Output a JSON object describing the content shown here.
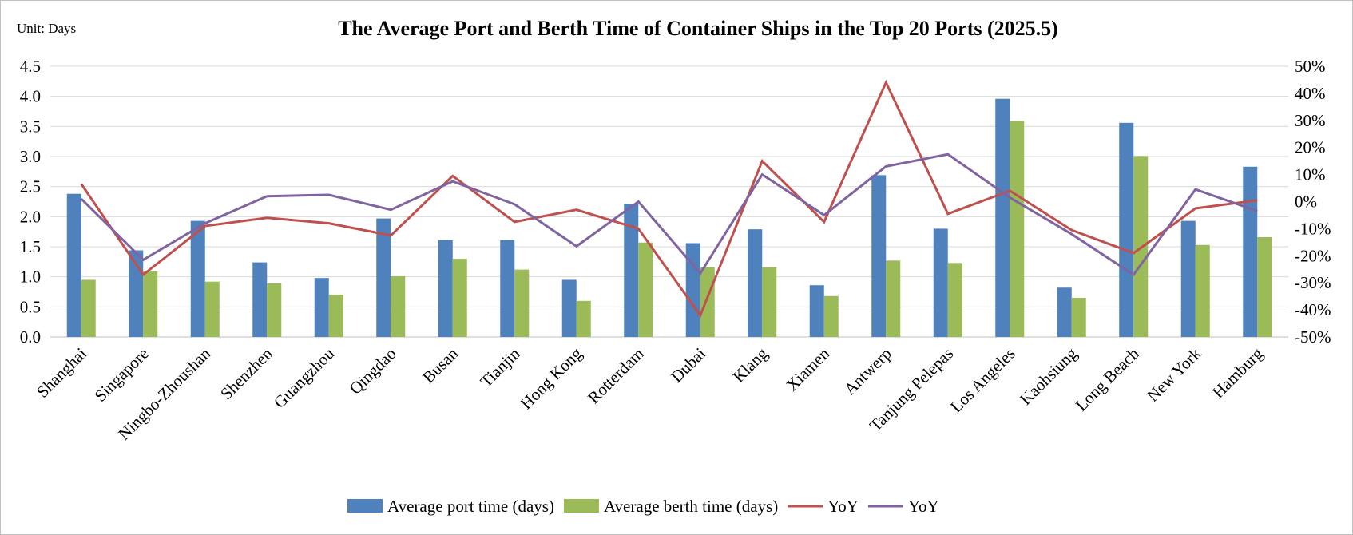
{
  "chart_data": {
    "type": "bar",
    "title": "The Average Port and Berth Time of Container Ships in the Top 20 Ports (2025.5)",
    "unit_label": "Unit: Days",
    "categories": [
      "Shanghai",
      "Singapore",
      "Ningbo-Zhoushan",
      "Shenzhen",
      "Guangzhou",
      "Qingdao",
      "Busan",
      "Tianjin",
      "Hong Kong",
      "Rotterdam",
      "Dubai",
      "Klang",
      "Xiamen",
      "Antwerp",
      "Tanjung Pelepas",
      "Los Angeles",
      "Kaohsiung",
      "Long Beach",
      "New York",
      "Hamburg"
    ],
    "series": [
      {
        "name": "Average port time (days)",
        "type": "bar",
        "axis": "left",
        "color": "#4f81bd",
        "values": [
          2.38,
          1.44,
          1.93,
          1.24,
          0.98,
          1.97,
          1.61,
          1.61,
          0.95,
          2.21,
          1.56,
          1.79,
          0.86,
          2.69,
          1.8,
          3.96,
          0.82,
          3.56,
          1.93,
          2.83
        ]
      },
      {
        "name": "Average berth time (days)",
        "type": "bar",
        "axis": "left",
        "color": "#9bbb59",
        "values": [
          0.95,
          1.09,
          0.92,
          0.89,
          0.7,
          1.01,
          1.3,
          1.12,
          0.6,
          1.57,
          1.16,
          1.16,
          0.68,
          1.27,
          1.23,
          3.59,
          0.65,
          3.01,
          1.53,
          1.66
        ]
      },
      {
        "name": "YoY",
        "type": "line",
        "axis": "right",
        "color": "#c0504d",
        "values": [
          6.5,
          -27,
          -9,
          -6,
          -8,
          -12.5,
          9.5,
          -7.5,
          -3,
          -10,
          -42,
          15,
          -7.5,
          44,
          -4.5,
          4,
          -10.5,
          -19,
          -2.5,
          0.5
        ]
      },
      {
        "name": "YoY",
        "type": "line",
        "axis": "right",
        "color": "#8064a2",
        "values": [
          1,
          -21.5,
          -8,
          2,
          2.5,
          -3,
          7.5,
          -1,
          -16.5,
          0,
          -26.5,
          10,
          -5,
          13,
          17.5,
          1.5,
          -12,
          -27,
          4.5,
          -3.5
        ]
      }
    ],
    "y_left": {
      "min": 0,
      "max": 4.5,
      "step": 0.5,
      "tick_labels": [
        "0.0",
        "0.5",
        "1.0",
        "1.5",
        "2.0",
        "2.5",
        "3.0",
        "3.5",
        "4.0",
        "4.5"
      ]
    },
    "y_right": {
      "min": -50,
      "max": 50,
      "step": 10,
      "tick_labels": [
        "-50%",
        "-40%",
        "-30%",
        "-20%",
        "-10%",
        "0%",
        "10%",
        "20%",
        "30%",
        "40%",
        "50%"
      ]
    },
    "grid": true,
    "legend_position": "bottom"
  }
}
